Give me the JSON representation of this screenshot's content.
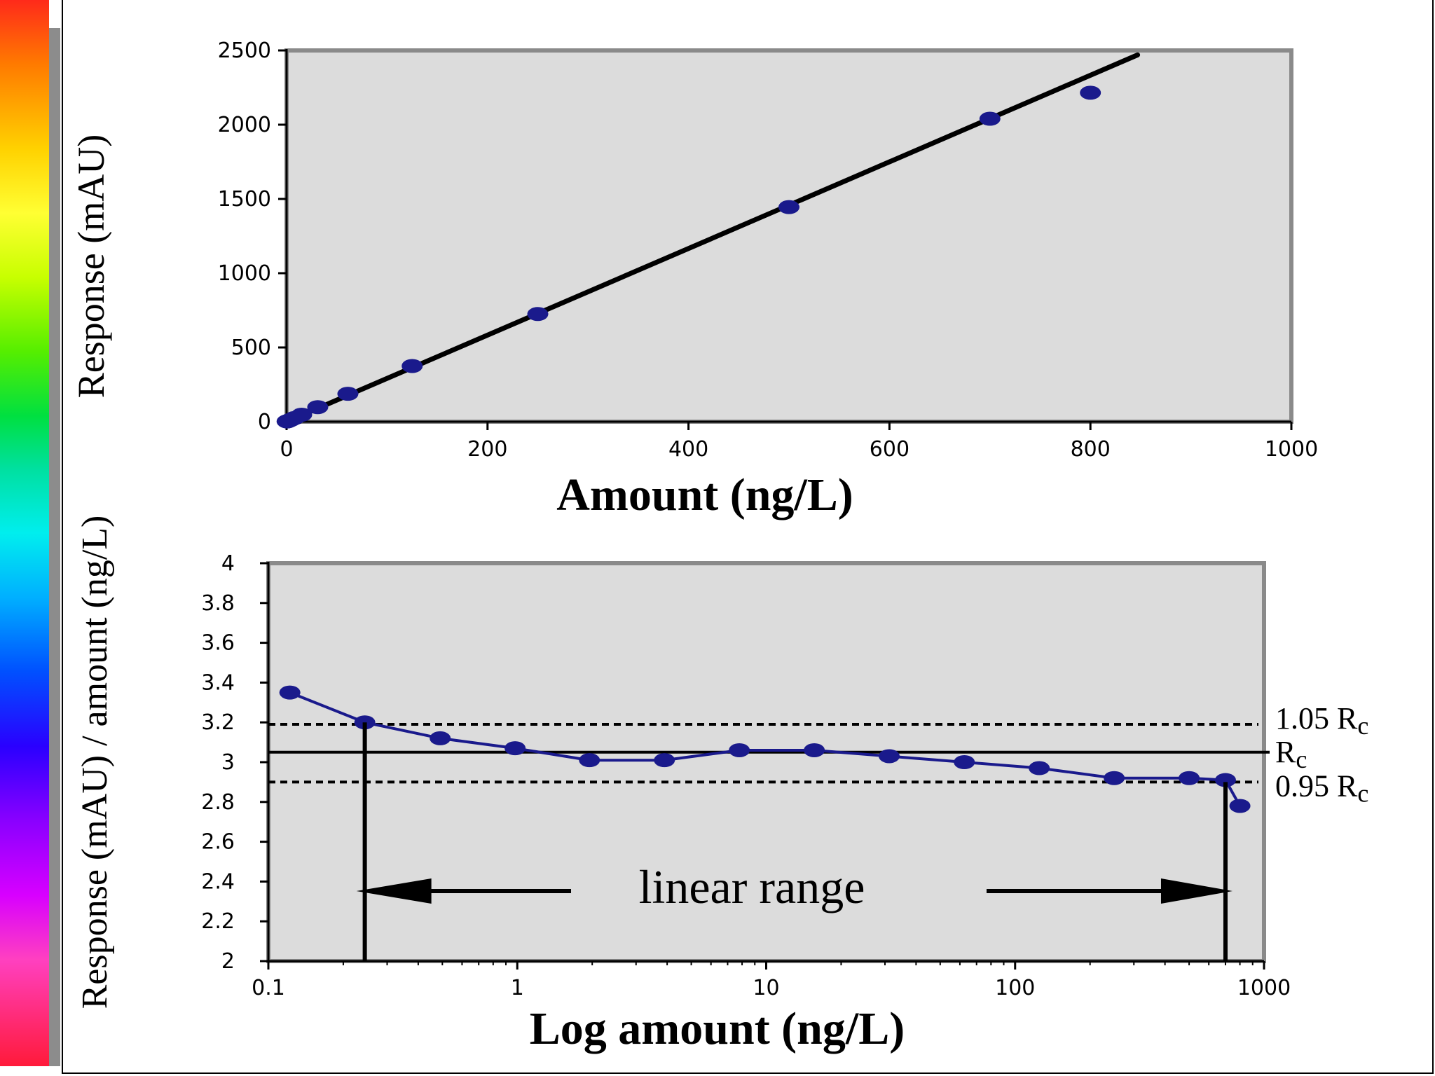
{
  "chart_data": [
    {
      "type": "scatter",
      "xlabel": "Amount (ng/L)",
      "ylabel": "Response (mAU)",
      "xlim": [
        0,
        1000
      ],
      "ylim": [
        0,
        2500
      ],
      "xticks": [
        0,
        200,
        400,
        600,
        800,
        1000
      ],
      "yticks": [
        0,
        500,
        1000,
        1500,
        2000,
        2500
      ],
      "grid": false,
      "series": [
        {
          "marker_color": "#1a1a8c",
          "points": [
            [
              0.5,
              2
            ],
            [
              1,
              3
            ],
            [
              2,
              6
            ],
            [
              4,
              12
            ],
            [
              8,
              25
            ],
            [
              15,
              47
            ],
            [
              31,
              98
            ],
            [
              61,
              188
            ],
            [
              125,
              375
            ],
            [
              250,
              725
            ],
            [
              500,
              1445
            ],
            [
              700,
              2040
            ],
            [
              800,
              2215
            ]
          ]
        }
      ],
      "fit_line": {
        "x": [
          0,
          847
        ],
        "y": [
          0,
          2470
        ],
        "color": "#000000"
      }
    },
    {
      "type": "line",
      "xlabel": "Log amount (ng/L)",
      "ylabel": "Response (mAU) / amount (ng/L)",
      "xscale": "log",
      "xlim": [
        0.1,
        1000
      ],
      "ylim": [
        2,
        4
      ],
      "xticks": [
        "0.1",
        "1",
        "10",
        "100",
        "1000"
      ],
      "yticks": [
        "2",
        "2.2",
        "2.4",
        "2.6",
        "2.8",
        "3",
        "3.2",
        "3.4",
        "3.6",
        "3.8",
        "4"
      ],
      "grid": false,
      "series": [
        {
          "color": "#1a1a8c",
          "points": [
            [
              0.122,
              3.35
            ],
            [
              0.244,
              3.2
            ],
            [
              0.49,
              3.12
            ],
            [
              0.98,
              3.07
            ],
            [
              1.95,
              3.01
            ],
            [
              3.9,
              3.01
            ],
            [
              7.8,
              3.06
            ],
            [
              15.6,
              3.06
            ],
            [
              31.2,
              3.03
            ],
            [
              62.5,
              3.0
            ],
            [
              125,
              2.97
            ],
            [
              250,
              2.92
            ],
            [
              500,
              2.92
            ],
            [
              700,
              2.91
            ],
            [
              800,
              2.78
            ]
          ]
        }
      ],
      "reference_lines": [
        {
          "y": 3.19,
          "style": "dashed",
          "label": "1.05 Rc"
        },
        {
          "y": 3.05,
          "style": "solid",
          "label": "Rc"
        },
        {
          "y": 2.9,
          "style": "dashed",
          "label": "0.95 Rc"
        }
      ],
      "linear_range": {
        "x_start": 0.244,
        "x_end": 700,
        "label": "linear range"
      }
    }
  ]
}
